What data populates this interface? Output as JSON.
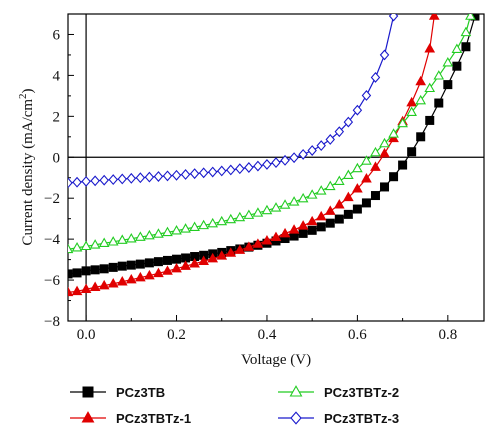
{
  "chart_data": {
    "type": "line",
    "xlabel": "Voltage (V)",
    "ylabel_main": "Current density (mA/cm",
    "ylabel_sup": "2",
    "ylabel_end": ")",
    "xlim": [
      -0.04,
      0.88
    ],
    "ylim": [
      -8,
      7
    ],
    "x_ticks": [
      0.0,
      0.2,
      0.4,
      0.6,
      0.8
    ],
    "x_tick_labels": [
      "0.0",
      "0.2",
      "0.4",
      "0.6",
      "0.8"
    ],
    "y_ticks": [
      -8,
      -6,
      -4,
      -2,
      0,
      2,
      4,
      6
    ],
    "y_tick_labels": [
      "−8",
      "−6",
      "−4",
      "−2",
      "0",
      "2",
      "4",
      "6"
    ],
    "reference_lines": {
      "x": 0,
      "y": 0
    },
    "grid": false,
    "legend_position": "below",
    "series": [
      {
        "name": "PCz3TB",
        "color": "#000000",
        "marker": "square-filled",
        "x": [
          -0.04,
          -0.02,
          0.0,
          0.02,
          0.04,
          0.06,
          0.08,
          0.1,
          0.12,
          0.14,
          0.16,
          0.18,
          0.2,
          0.22,
          0.24,
          0.26,
          0.28,
          0.3,
          0.32,
          0.34,
          0.36,
          0.38,
          0.4,
          0.42,
          0.44,
          0.46,
          0.48,
          0.5,
          0.52,
          0.54,
          0.56,
          0.58,
          0.6,
          0.62,
          0.64,
          0.66,
          0.68,
          0.7,
          0.72,
          0.74,
          0.76,
          0.78,
          0.8,
          0.82,
          0.84,
          0.86
        ],
        "y": [
          -5.7,
          -5.65,
          -5.55,
          -5.5,
          -5.45,
          -5.38,
          -5.32,
          -5.27,
          -5.22,
          -5.16,
          -5.1,
          -5.04,
          -4.98,
          -4.92,
          -4.85,
          -4.79,
          -4.72,
          -4.65,
          -4.56,
          -4.48,
          -4.39,
          -4.3,
          -4.2,
          -4.09,
          -3.97,
          -3.85,
          -3.72,
          -3.57,
          -3.4,
          -3.22,
          -3.02,
          -2.79,
          -2.53,
          -2.23,
          -1.87,
          -1.45,
          -0.95,
          -0.38,
          0.27,
          1.0,
          1.8,
          2.65,
          3.55,
          4.45,
          5.4,
          6.9
        ]
      },
      {
        "name": "PCz3TBTz-1",
        "color": "#e00000",
        "marker": "triangle-filled",
        "x": [
          -0.04,
          -0.02,
          0.0,
          0.02,
          0.04,
          0.06,
          0.08,
          0.1,
          0.12,
          0.14,
          0.16,
          0.18,
          0.2,
          0.22,
          0.24,
          0.26,
          0.28,
          0.3,
          0.32,
          0.34,
          0.36,
          0.38,
          0.4,
          0.42,
          0.44,
          0.46,
          0.48,
          0.5,
          0.52,
          0.54,
          0.56,
          0.58,
          0.6,
          0.62,
          0.64,
          0.66,
          0.68,
          0.7,
          0.72,
          0.74,
          0.76,
          0.77
        ],
        "y": [
          -6.6,
          -6.55,
          -6.45,
          -6.35,
          -6.27,
          -6.18,
          -6.08,
          -5.98,
          -5.88,
          -5.78,
          -5.67,
          -5.56,
          -5.44,
          -5.32,
          -5.2,
          -5.08,
          -4.95,
          -4.82,
          -4.68,
          -4.54,
          -4.39,
          -4.24,
          -4.08,
          -3.91,
          -3.73,
          -3.55,
          -3.35,
          -3.14,
          -2.9,
          -2.63,
          -2.32,
          -1.96,
          -1.54,
          -1.05,
          -0.48,
          0.18,
          0.92,
          1.75,
          2.67,
          3.7,
          5.3,
          6.9
        ]
      },
      {
        "name": "PCz3TBTz-2",
        "color": "#22cc22",
        "marker": "triangle-open",
        "x": [
          -0.04,
          -0.02,
          0.0,
          0.02,
          0.04,
          0.06,
          0.08,
          0.1,
          0.12,
          0.14,
          0.16,
          0.18,
          0.2,
          0.22,
          0.24,
          0.26,
          0.28,
          0.3,
          0.32,
          0.34,
          0.36,
          0.38,
          0.4,
          0.42,
          0.44,
          0.46,
          0.48,
          0.5,
          0.52,
          0.54,
          0.56,
          0.58,
          0.6,
          0.62,
          0.64,
          0.66,
          0.68,
          0.7,
          0.72,
          0.74,
          0.76,
          0.78,
          0.8,
          0.82,
          0.84,
          0.85
        ],
        "y": [
          -4.5,
          -4.42,
          -4.35,
          -4.28,
          -4.2,
          -4.13,
          -4.05,
          -3.98,
          -3.9,
          -3.83,
          -3.75,
          -3.67,
          -3.59,
          -3.5,
          -3.42,
          -3.33,
          -3.24,
          -3.14,
          -3.04,
          -2.94,
          -2.83,
          -2.72,
          -2.6,
          -2.47,
          -2.33,
          -2.18,
          -2.02,
          -1.84,
          -1.64,
          -1.42,
          -1.17,
          -0.88,
          -0.55,
          -0.18,
          0.23,
          0.67,
          1.14,
          1.65,
          2.2,
          2.77,
          3.37,
          3.98,
          4.62,
          5.28,
          6.1,
          6.9
        ]
      },
      {
        "name": "PCz3TBTz-3",
        "color": "#1a1acc",
        "marker": "diamond-open",
        "x": [
          -0.04,
          -0.02,
          0.0,
          0.02,
          0.04,
          0.06,
          0.08,
          0.1,
          0.12,
          0.14,
          0.16,
          0.18,
          0.2,
          0.22,
          0.24,
          0.26,
          0.28,
          0.3,
          0.32,
          0.34,
          0.36,
          0.38,
          0.4,
          0.42,
          0.44,
          0.46,
          0.48,
          0.5,
          0.52,
          0.54,
          0.56,
          0.58,
          0.6,
          0.62,
          0.64,
          0.66,
          0.68
        ],
        "y": [
          -1.25,
          -1.22,
          -1.18,
          -1.15,
          -1.12,
          -1.09,
          -1.06,
          -1.03,
          -1.0,
          -0.97,
          -0.94,
          -0.91,
          -0.88,
          -0.84,
          -0.8,
          -0.76,
          -0.72,
          -0.67,
          -0.62,
          -0.56,
          -0.5,
          -0.43,
          -0.35,
          -0.26,
          -0.15,
          -0.02,
          0.14,
          0.33,
          0.57,
          0.87,
          1.25,
          1.72,
          2.3,
          3.02,
          3.9,
          5.0,
          6.9
        ]
      }
    ]
  }
}
